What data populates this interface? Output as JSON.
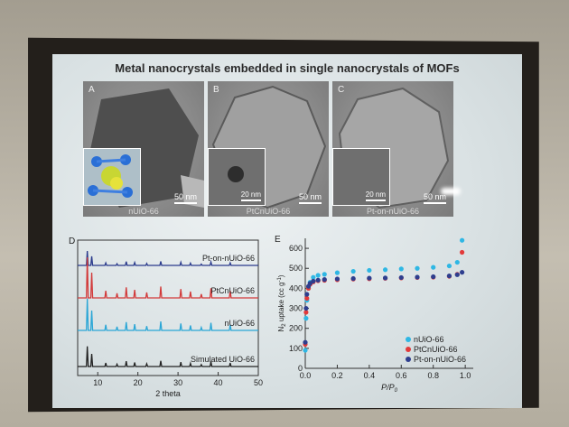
{
  "slide": {
    "title": "Metal nanocrystals embedded in single nanocrystals of MOFs"
  },
  "tem_panels": [
    {
      "letter": "A",
      "caption": "nUiO-66",
      "scale": "50 nm",
      "inset_scale": ""
    },
    {
      "letter": "B",
      "caption": "PtCnUiO-66",
      "scale": "50 nm",
      "inset_scale": "20 nm"
    },
    {
      "letter": "C",
      "caption": "Pt-on-nUiO-66",
      "scale": "50 nm",
      "inset_scale": "20 nm"
    }
  ],
  "chart_data": [
    {
      "type": "line",
      "panel": "D",
      "xlabel": "2 theta",
      "ylabel": "",
      "xlim": [
        5,
        50
      ],
      "xticks": [
        10,
        20,
        30,
        40,
        50
      ],
      "series": [
        {
          "name": "Pt-on-nUiO-66",
          "color": "#2a3a8c"
        },
        {
          "name": "PtCnUiO-66",
          "color": "#d23a3a"
        },
        {
          "name": "nUiO-66",
          "color": "#2aa6d6"
        },
        {
          "name": "Simulated UiO-66",
          "color": "#222222"
        }
      ],
      "peaks": [
        7.4,
        8.5,
        12.0,
        14.8,
        17.1,
        19.2,
        22.2,
        25.7,
        30.7,
        33.1,
        35.8,
        38.2,
        43.0
      ]
    },
    {
      "type": "scatter",
      "panel": "E",
      "xlabel": "P/P",
      "xlabel_sub": "0",
      "ylabel": "N",
      "ylabel_sub": "2",
      "ylabel_rest": " uptake (cc g",
      "ylabel_sup": "-1",
      "ylabel_end": ")",
      "xlim": [
        0,
        1.05
      ],
      "ylim": [
        0,
        650
      ],
      "xticks": [
        "0.0",
        "0.2",
        "0.4",
        "0.6",
        "0.8",
        "1.0"
      ],
      "yticks": [
        "0",
        "100",
        "200",
        "300",
        "400",
        "500",
        "600"
      ],
      "legend_position": "bottom-right",
      "series": [
        {
          "name": "nUiO-66",
          "color": "#2fb7e4",
          "x": [
            0.0,
            0.005,
            0.01,
            0.02,
            0.03,
            0.05,
            0.08,
            0.12,
            0.2,
            0.3,
            0.4,
            0.5,
            0.6,
            0.7,
            0.8,
            0.9,
            0.95,
            0.98
          ],
          "y": [
            90,
            250,
            340,
            400,
            430,
            455,
            465,
            470,
            478,
            485,
            490,
            493,
            497,
            500,
            505,
            512,
            530,
            640
          ]
        },
        {
          "name": "PtCnUiO-66",
          "color": "#e23a3a",
          "x": [
            0.0,
            0.005,
            0.01,
            0.02,
            0.03,
            0.05,
            0.08,
            0.12,
            0.2,
            0.3,
            0.4,
            0.5,
            0.6,
            0.7,
            0.8,
            0.9,
            0.95,
            0.98
          ],
          "y": [
            120,
            280,
            350,
            400,
            420,
            432,
            438,
            440,
            443,
            446,
            448,
            450,
            452,
            454,
            456,
            460,
            470,
            580
          ]
        },
        {
          "name": "Pt-on-nUiO-66",
          "color": "#2e3e8e",
          "x": [
            0.0,
            0.005,
            0.01,
            0.02,
            0.03,
            0.05,
            0.08,
            0.12,
            0.2,
            0.3,
            0.4,
            0.5,
            0.6,
            0.7,
            0.8,
            0.9,
            0.95,
            0.98
          ],
          "y": [
            130,
            300,
            370,
            410,
            425,
            436,
            441,
            444,
            447,
            449,
            451,
            452,
            454,
            456,
            458,
            462,
            468,
            480
          ]
        }
      ]
    }
  ]
}
